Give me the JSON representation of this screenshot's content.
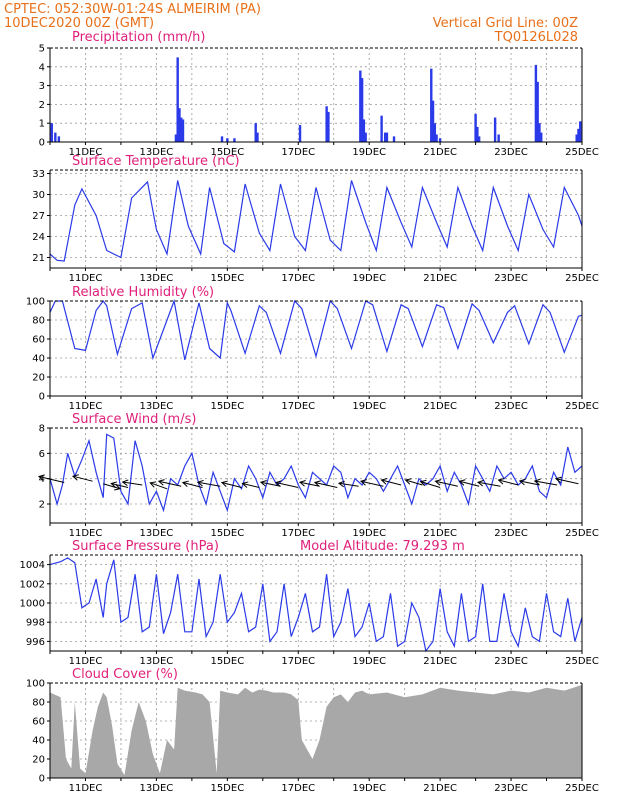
{
  "header": {
    "station_line": "CPTEC:   052:30W-01:24S   ALMEIRIM (PA)",
    "date_line": "10DEC2020 00Z (GMT)",
    "grid_note": "Vertical Grid Line: 00Z",
    "code": "TQ0126L028"
  },
  "colors": {
    "header": "#e8701a",
    "panel_title": "#e0207a",
    "line": "#2a3ae8",
    "bar": "#2a3ae8",
    "cloud": "#a8a8a8",
    "wind_arrow": "#000000"
  },
  "x_tick_labels": [
    "11DEC",
    "13DEC",
    "15DEC",
    "17DEC",
    "19DEC",
    "21DEC",
    "23DEC",
    "25DEC"
  ],
  "chart_data": [
    {
      "id": "precip",
      "type": "bar",
      "title": "Precipitation (mm/h)",
      "ylim": [
        0,
        5
      ],
      "yticks": [
        0,
        1,
        2,
        3,
        4,
        5
      ],
      "xlim": [
        0,
        15
      ],
      "series": [
        {
          "x": [
            0.05,
            0.15,
            0.25,
            3.55,
            3.6,
            3.65,
            3.7,
            3.75,
            4.85,
            5.0,
            5.2,
            5.8,
            5.85,
            7.05,
            7.8,
            7.85,
            8.75,
            8.8,
            8.85,
            8.9,
            9.35,
            9.45,
            9.5,
            9.7,
            10.75,
            10.8,
            10.85,
            10.9,
            11.0,
            12.0,
            12.05,
            12.1,
            12.55,
            12.65,
            13.7,
            13.75,
            13.8,
            13.85,
            14.85,
            14.9,
            14.95
          ],
          "values": [
            1.0,
            0.5,
            0.3,
            0.4,
            4.5,
            1.8,
            1.3,
            1.2,
            0.3,
            0.2,
            0.2,
            1.0,
            0.5,
            0.9,
            1.9,
            1.6,
            3.8,
            3.4,
            1.2,
            0.5,
            1.4,
            0.5,
            0.5,
            0.3,
            3.9,
            2.2,
            1.0,
            0.4,
            0.2,
            1.5,
            0.8,
            0.3,
            1.3,
            0.4,
            4.1,
            3.2,
            1.0,
            0.5,
            0.4,
            0.7,
            1.1
          ]
        }
      ],
      "grid": true
    },
    {
      "id": "temp",
      "type": "line",
      "title": "Surface Temperature (nC)",
      "ylim": [
        19.5,
        33.5
      ],
      "yticks": [
        21,
        24,
        27,
        30,
        33
      ],
      "xlim": [
        0,
        15
      ],
      "series": [
        {
          "x": [
            0,
            0.2,
            0.4,
            0.7,
            0.9,
            1.3,
            1.6,
            2.0,
            2.3,
            2.75,
            3.0,
            3.3,
            3.6,
            3.9,
            4.25,
            4.5,
            4.9,
            5.2,
            5.5,
            5.9,
            6.2,
            6.5,
            6.9,
            7.2,
            7.5,
            7.9,
            8.2,
            8.5,
            8.9,
            9.2,
            9.5,
            9.9,
            10.2,
            10.5,
            10.9,
            11.2,
            11.5,
            11.9,
            12.2,
            12.5,
            12.9,
            13.2,
            13.5,
            13.9,
            14.2,
            14.5,
            14.9,
            15.0
          ],
          "values": [
            21.5,
            20.6,
            20.5,
            28.5,
            30.8,
            27.0,
            22.0,
            21.0,
            29.5,
            31.8,
            25.0,
            21.5,
            32.0,
            25.5,
            21.5,
            31.0,
            23.0,
            21.8,
            31.5,
            24.5,
            22.0,
            31.5,
            24.0,
            22.0,
            31.0,
            23.5,
            22.0,
            32.0,
            26.0,
            22.0,
            31.0,
            26.0,
            22.5,
            31.0,
            26.0,
            22.5,
            31.0,
            25.5,
            22.0,
            31.0,
            25.5,
            22.0,
            30.0,
            25.0,
            22.5,
            31.0,
            27.0,
            25.5
          ]
        }
      ],
      "grid": true
    },
    {
      "id": "rh",
      "type": "line",
      "title": "Relative Humidity (%)",
      "ylim": [
        0,
        100
      ],
      "yticks": [
        0,
        20,
        40,
        60,
        80,
        100
      ],
      "xlim": [
        0,
        15
      ],
      "series": [
        {
          "x": [
            0,
            0.15,
            0.35,
            0.7,
            1.0,
            1.3,
            1.5,
            1.6,
            1.9,
            2.3,
            2.6,
            2.9,
            3.2,
            3.5,
            3.8,
            4.2,
            4.5,
            4.8,
            5.0,
            5.1,
            5.5,
            5.9,
            6.1,
            6.5,
            6.9,
            7.1,
            7.5,
            7.9,
            8.1,
            8.5,
            8.9,
            9.1,
            9.5,
            9.9,
            10.1,
            10.5,
            10.9,
            11.1,
            11.5,
            11.9,
            12.1,
            12.5,
            12.9,
            13.1,
            13.5,
            13.9,
            14.1,
            14.5,
            14.9,
            15.0
          ],
          "values": [
            88,
            100,
            100,
            50,
            48,
            90,
            100,
            95,
            44,
            92,
            98,
            40,
            70,
            100,
            38,
            98,
            50,
            40,
            98,
            90,
            45,
            95,
            88,
            45,
            100,
            92,
            42,
            100,
            92,
            50,
            100,
            96,
            47,
            96,
            92,
            52,
            96,
            93,
            50,
            97,
            90,
            56,
            88,
            95,
            55,
            96,
            88,
            46,
            84,
            85
          ]
        }
      ],
      "grid": true
    },
    {
      "id": "wind",
      "type": "line",
      "title": "Surface Wind (m/s)",
      "ylim": [
        0.5,
        8
      ],
      "yticks": [
        2,
        4,
        6,
        8
      ],
      "xlim": [
        0,
        15
      ],
      "series": [
        {
          "x": [
            0,
            0.2,
            0.35,
            0.5,
            0.7,
            0.9,
            1.1,
            1.3,
            1.5,
            1.6,
            1.8,
            2.0,
            2.2,
            2.4,
            2.6,
            2.8,
            3.0,
            3.2,
            3.4,
            3.6,
            3.8,
            4.0,
            4.2,
            4.4,
            4.6,
            4.8,
            5.0,
            5.2,
            5.4,
            5.6,
            5.8,
            6.0,
            6.2,
            6.4,
            6.6,
            6.8,
            7.0,
            7.2,
            7.4,
            7.6,
            7.8,
            8.0,
            8.2,
            8.4,
            8.6,
            8.8,
            9.0,
            9.2,
            9.4,
            9.6,
            9.8,
            10.0,
            10.2,
            10.4,
            10.6,
            10.8,
            11.0,
            11.2,
            11.4,
            11.6,
            11.8,
            12.0,
            12.2,
            12.4,
            12.6,
            12.8,
            13.0,
            13.2,
            13.4,
            13.6,
            13.8,
            14.0,
            14.2,
            14.4,
            14.6,
            14.8,
            15.0
          ],
          "values": [
            4.0,
            2.0,
            3.5,
            6.0,
            4.2,
            5.5,
            7.0,
            4.5,
            2.5,
            7.5,
            7.2,
            3.0,
            2.0,
            7.0,
            5.0,
            2.0,
            3.0,
            1.5,
            4.0,
            3.5,
            5.0,
            6.0,
            3.5,
            2.0,
            4.5,
            3.0,
            1.5,
            4.0,
            3.2,
            5.0,
            4.0,
            2.5,
            4.5,
            3.5,
            4.0,
            5.0,
            3.5,
            2.5,
            4.5,
            4.0,
            3.5,
            5.0,
            4.5,
            2.5,
            4.0,
            3.5,
            4.5,
            4.0,
            3.0,
            4.0,
            5.0,
            3.5,
            2.0,
            4.0,
            3.5,
            4.0,
            5.0,
            3.0,
            4.5,
            3.5,
            2.0,
            5.0,
            4.0,
            3.0,
            5.0,
            4.0,
            4.5,
            3.5,
            4.0,
            5.0,
            3.0,
            2.5,
            4.5,
            3.5,
            6.5,
            4.5,
            5.0
          ]
        }
      ],
      "wind_arrows": [
        {
          "x": 0.4,
          "y": 3.7,
          "dx": -0.9,
          "dy": 0.6
        },
        {
          "x": 1.2,
          "y": 3.8,
          "dx": -0.7,
          "dy": 0.5
        },
        {
          "x": 1.5,
          "y": 3.6,
          "dx": 0.6,
          "dy": -0.5
        },
        {
          "x": 2.2,
          "y": 3.3,
          "dx": -0.6,
          "dy": 0.4
        },
        {
          "x": 2.6,
          "y": 3.5,
          "dx": -0.7,
          "dy": 0.3
        },
        {
          "x": 3.3,
          "y": 3.2,
          "dx": -0.6,
          "dy": 0.6
        },
        {
          "x": 3.7,
          "y": 3.4,
          "dx": -0.8,
          "dy": 0.5
        },
        {
          "x": 4.3,
          "y": 3.3,
          "dx": -0.7,
          "dy": 0.5
        },
        {
          "x": 4.8,
          "y": 3.4,
          "dx": -0.8,
          "dy": 0.4
        },
        {
          "x": 5.4,
          "y": 3.3,
          "dx": -0.7,
          "dy": 0.5
        },
        {
          "x": 5.9,
          "y": 3.3,
          "dx": -0.6,
          "dy": 0.4
        },
        {
          "x": 6.5,
          "y": 3.4,
          "dx": -0.7,
          "dy": 0.4
        },
        {
          "x": 7.0,
          "y": 3.3,
          "dx": -0.8,
          "dy": 0.5
        },
        {
          "x": 7.6,
          "y": 3.4,
          "dx": -0.7,
          "dy": 0.4
        },
        {
          "x": 8.1,
          "y": 3.3,
          "dx": -0.8,
          "dy": 0.5
        },
        {
          "x": 8.7,
          "y": 3.4,
          "dx": -0.7,
          "dy": 0.3
        },
        {
          "x": 9.4,
          "y": 3.4,
          "dx": -0.8,
          "dy": 0.5
        },
        {
          "x": 9.9,
          "y": 3.5,
          "dx": -0.7,
          "dy": 0.5
        },
        {
          "x": 10.5,
          "y": 3.5,
          "dx": -0.6,
          "dy": 0.5
        },
        {
          "x": 11.0,
          "y": 3.3,
          "dx": -0.7,
          "dy": 0.6
        },
        {
          "x": 11.5,
          "y": 3.4,
          "dx": -0.8,
          "dy": 0.5
        },
        {
          "x": 12.1,
          "y": 3.4,
          "dx": -0.7,
          "dy": 0.5
        },
        {
          "x": 12.7,
          "y": 3.4,
          "dx": -0.8,
          "dy": 0.4
        },
        {
          "x": 13.2,
          "y": 3.5,
          "dx": -0.7,
          "dy": 0.5
        },
        {
          "x": 13.8,
          "y": 3.5,
          "dx": -0.7,
          "dy": 0.4
        },
        {
          "x": 14.3,
          "y": 3.5,
          "dx": -0.8,
          "dy": 0.4
        },
        {
          "x": 14.9,
          "y": 3.6,
          "dx": -0.8,
          "dy": 0.5
        }
      ],
      "grid": true
    },
    {
      "id": "pressure",
      "type": "line",
      "title": "Surface Pressure (hPa)",
      "annotation": "Model Altitude: 79.293 m",
      "ylim": [
        995,
        1005
      ],
      "yticks": [
        996,
        998,
        1000,
        1002,
        1004
      ],
      "xlim": [
        0,
        15
      ],
      "series": [
        {
          "x": [
            0,
            0.3,
            0.5,
            0.7,
            0.9,
            1.1,
            1.3,
            1.5,
            1.6,
            1.8,
            2.0,
            2.2,
            2.4,
            2.6,
            2.8,
            3.0,
            3.2,
            3.4,
            3.6,
            3.8,
            4.0,
            4.2,
            4.4,
            4.6,
            4.8,
            5.0,
            5.2,
            5.4,
            5.6,
            5.8,
            6.0,
            6.2,
            6.4,
            6.6,
            6.8,
            7.0,
            7.2,
            7.4,
            7.6,
            7.8,
            8.0,
            8.2,
            8.4,
            8.6,
            8.8,
            9.0,
            9.2,
            9.4,
            9.6,
            9.8,
            10.0,
            10.2,
            10.4,
            10.6,
            10.8,
            11.0,
            11.2,
            11.4,
            11.6,
            11.8,
            12.0,
            12.2,
            12.4,
            12.6,
            12.8,
            13.0,
            13.2,
            13.4,
            13.6,
            13.8,
            14.0,
            14.2,
            14.4,
            14.6,
            14.8,
            15.0
          ],
          "values": [
            1004.0,
            1004.3,
            1004.7,
            1004.2,
            999.5,
            1000.0,
            1002.5,
            998.5,
            1002.0,
            1004.5,
            998.0,
            998.5,
            1003.0,
            997.0,
            997.5,
            1003.0,
            996.8,
            999.0,
            1003.0,
            997.0,
            997.0,
            1002.5,
            996.5,
            998.0,
            1003.0,
            998.0,
            999.0,
            1001.0,
            997.0,
            997.5,
            1002.0,
            996.0,
            997.0,
            1002.0,
            996.5,
            998.5,
            1001.0,
            997.0,
            997.5,
            1003.0,
            996.5,
            998.0,
            1001.5,
            996.5,
            997.5,
            1000.0,
            996.0,
            996.5,
            1001.0,
            995.5,
            996.0,
            1000.0,
            998.5,
            995.0,
            996.0,
            1001.5,
            997.0,
            995.5,
            1001.0,
            996.0,
            996.5,
            1002.0,
            996.0,
            996.0,
            1001.0,
            997.0,
            995.5,
            999.5,
            996.5,
            996.0,
            1001.0,
            997.0,
            996.5,
            1000.5,
            996.0,
            998.5
          ]
        }
      ],
      "grid": true
    },
    {
      "id": "cloud",
      "type": "area",
      "title": "Cloud Cover (%)",
      "ylim": [
        0,
        100
      ],
      "yticks": [
        0,
        20,
        40,
        60,
        80,
        100
      ],
      "xlim": [
        0,
        15
      ],
      "series": [
        {
          "x": [
            0,
            0.3,
            0.45,
            0.6,
            0.7,
            0.85,
            1.0,
            1.2,
            1.35,
            1.5,
            1.6,
            1.75,
            1.9,
            2.1,
            2.3,
            2.5,
            2.7,
            2.9,
            3.1,
            3.3,
            3.5,
            3.6,
            3.8,
            4.1,
            4.3,
            4.5,
            4.7,
            4.8,
            5.0,
            5.3,
            5.5,
            5.7,
            5.9,
            6.1,
            6.3,
            6.6,
            6.8,
            7.0,
            7.1,
            7.4,
            7.6,
            7.8,
            8.0,
            8.2,
            8.4,
            8.6,
            8.8,
            9.0,
            9.5,
            10.0,
            10.5,
            11.0,
            11.5,
            12.0,
            12.5,
            13.0,
            13.5,
            14.0,
            14.5,
            15.0
          ],
          "values": [
            90,
            85,
            20,
            10,
            80,
            10,
            5,
            50,
            75,
            90,
            85,
            55,
            15,
            3,
            50,
            80,
            60,
            25,
            5,
            40,
            30,
            95,
            92,
            90,
            88,
            80,
            5,
            92,
            90,
            88,
            95,
            90,
            93,
            92,
            90,
            90,
            88,
            82,
            40,
            20,
            40,
            75,
            85,
            88,
            80,
            90,
            92,
            88,
            90,
            85,
            88,
            95,
            92,
            90,
            88,
            92,
            90,
            95,
            92,
            98
          ]
        }
      ],
      "grid": true
    }
  ]
}
